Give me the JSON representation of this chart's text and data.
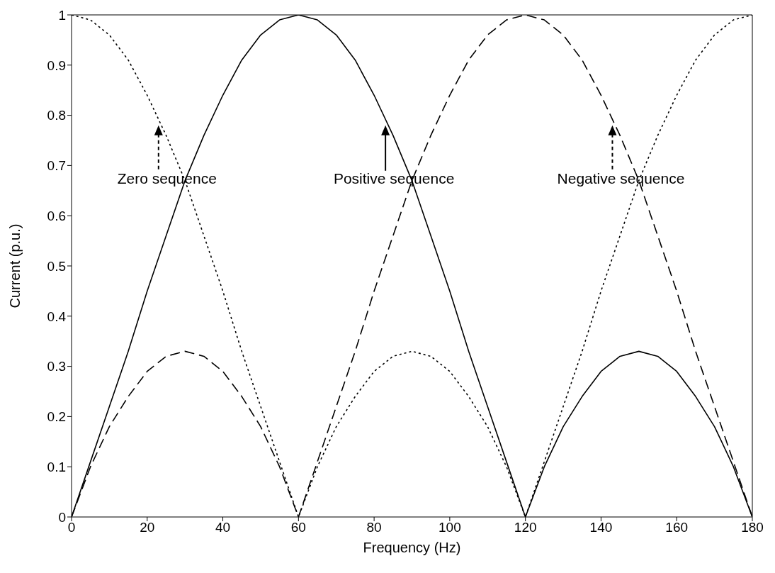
{
  "chart_data": {
    "type": "line",
    "xlabel": "Frequency (Hz)",
    "ylabel": "Current (p.u.)",
    "x": [
      0,
      5,
      10,
      15,
      20,
      25,
      30,
      35,
      40,
      45,
      50,
      55,
      60,
      65,
      70,
      75,
      80,
      85,
      90,
      95,
      100,
      105,
      110,
      115,
      120,
      125,
      130,
      135,
      140,
      145,
      150,
      155,
      160,
      165,
      170,
      175,
      180
    ],
    "series": [
      {
        "color": "#000000",
        "line_style": "dotted",
        "values": [
          1,
          0.99,
          0.96,
          0.91,
          0.84,
          0.76,
          0.67,
          0.56,
          0.45,
          0.33,
          0.22,
          0.11,
          0,
          0.1,
          0.18,
          0.24,
          0.29,
          0.32,
          0.33,
          0.32,
          0.29,
          0.24,
          0.18,
          0.1,
          0,
          0.11,
          0.22,
          0.33,
          0.45,
          0.56,
          0.67,
          0.76,
          0.84,
          0.91,
          0.96,
          0.99,
          1
        ]
      },
      {
        "color": "#000000",
        "line_style": "solid",
        "values": [
          0,
          0.11,
          0.22,
          0.33,
          0.45,
          0.56,
          0.67,
          0.76,
          0.84,
          0.91,
          0.96,
          0.99,
          1,
          0.99,
          0.96,
          0.91,
          0.84,
          0.76,
          0.67,
          0.56,
          0.45,
          0.33,
          0.22,
          0.11,
          0,
          0.1,
          0.18,
          0.24,
          0.29,
          0.32,
          0.33,
          0.32,
          0.29,
          0.24,
          0.18,
          0.1,
          0
        ]
      },
      {
        "color": "#000000",
        "line_style": "dashed",
        "values": [
          0,
          0.1,
          0.18,
          0.24,
          0.29,
          0.32,
          0.33,
          0.32,
          0.29,
          0.24,
          0.18,
          0.1,
          0,
          0.11,
          0.22,
          0.33,
          0.45,
          0.56,
          0.67,
          0.76,
          0.84,
          0.91,
          0.96,
          0.99,
          1,
          0.99,
          0.96,
          0.91,
          0.84,
          0.76,
          0.67,
          0.56,
          0.45,
          0.33,
          0.22,
          0.11,
          0
        ]
      }
    ],
    "xlim": [
      0,
      180
    ],
    "xticks": [
      0,
      20,
      40,
      60,
      80,
      100,
      120,
      140,
      160,
      180
    ],
    "ylim": [
      0,
      1
    ],
    "yticks": [
      0,
      0.1,
      0.2,
      0.3,
      0.4,
      0.5,
      0.6,
      0.7,
      0.8,
      0.9,
      1
    ],
    "grid": false,
    "marker": "none",
    "annotations": [
      {
        "text": "Zero sequence",
        "x": 23,
        "y": 0.78
      },
      {
        "text": "Positive sequence",
        "x": 83,
        "y": 0.78
      },
      {
        "text": "Negative sequence",
        "x": 143,
        "y": 0.78
      }
    ]
  }
}
